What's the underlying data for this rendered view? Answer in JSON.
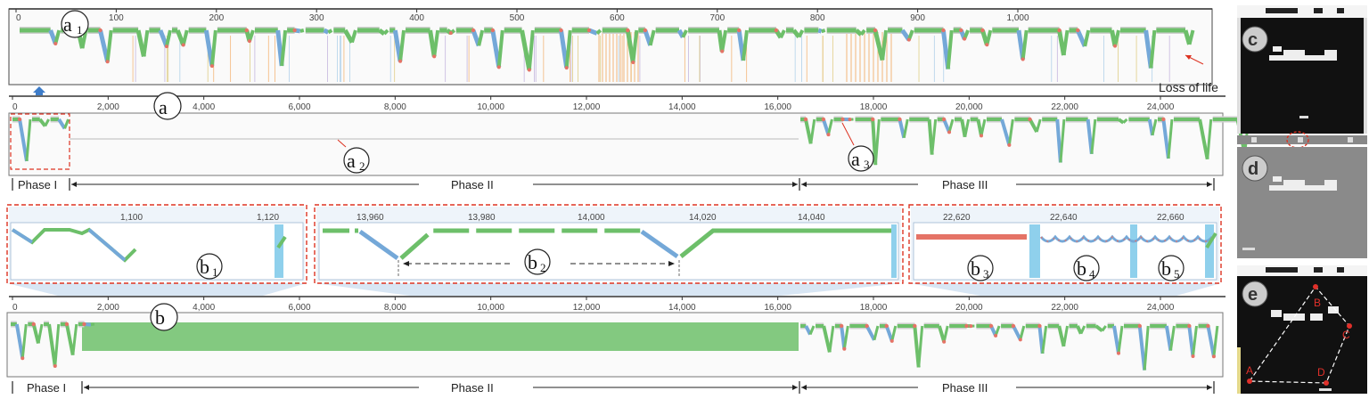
{
  "panel_a1": {
    "label": "a",
    "sub": "1",
    "ticks": [
      "0",
      "100",
      "200",
      "300",
      "400",
      "500",
      "600",
      "700",
      "800",
      "900",
      "1,000"
    ],
    "note": "Loss of life"
  },
  "panel_a": {
    "label": "a",
    "ticks": [
      "0",
      "2,000",
      "4,000",
      "6,000",
      "8,000",
      "10,000",
      "12,000",
      "14,000",
      "16,000",
      "18,000",
      "20,000",
      "22,000",
      "24,000"
    ],
    "callouts": [
      {
        "label": "a",
        "sub": "2"
      },
      {
        "label": "a",
        "sub": "3"
      }
    ],
    "phases": [
      "Phase I",
      "Phase II",
      "Phase III"
    ]
  },
  "zooms": [
    {
      "label": "b",
      "sub": "1",
      "ticks": [
        "1,100",
        "1,120"
      ]
    },
    {
      "label": "b",
      "sub": "2",
      "ticks": [
        "13,960",
        "13,980",
        "14,000",
        "14,020",
        "14,040"
      ]
    },
    {
      "labels": [
        {
          "label": "b",
          "sub": "3"
        },
        {
          "label": "b",
          "sub": "4"
        },
        {
          "label": "b",
          "sub": "5"
        }
      ],
      "ticks": [
        "22,620",
        "22,640",
        "22,660"
      ]
    }
  ],
  "panel_b": {
    "label": "b",
    "ticks": [
      "0",
      "2,000",
      "4,000",
      "6,000",
      "8,000",
      "10,000",
      "12,000",
      "14,000",
      "16,000",
      "18,000",
      "20,000",
      "22,000",
      "24,000"
    ],
    "phases": [
      "Phase I",
      "Phase II",
      "Phase III"
    ]
  },
  "game": {
    "c_label": "c",
    "d_label": "d",
    "e_label": "e",
    "points": [
      "A",
      "B",
      "C",
      "D"
    ]
  },
  "colors": {
    "green": "#6dbf6a",
    "blue": "#74a8d8",
    "red": "#e57366",
    "gray": "#bfbfbf",
    "orange": "#f2a65a",
    "purple": "#b7a6d8"
  }
}
